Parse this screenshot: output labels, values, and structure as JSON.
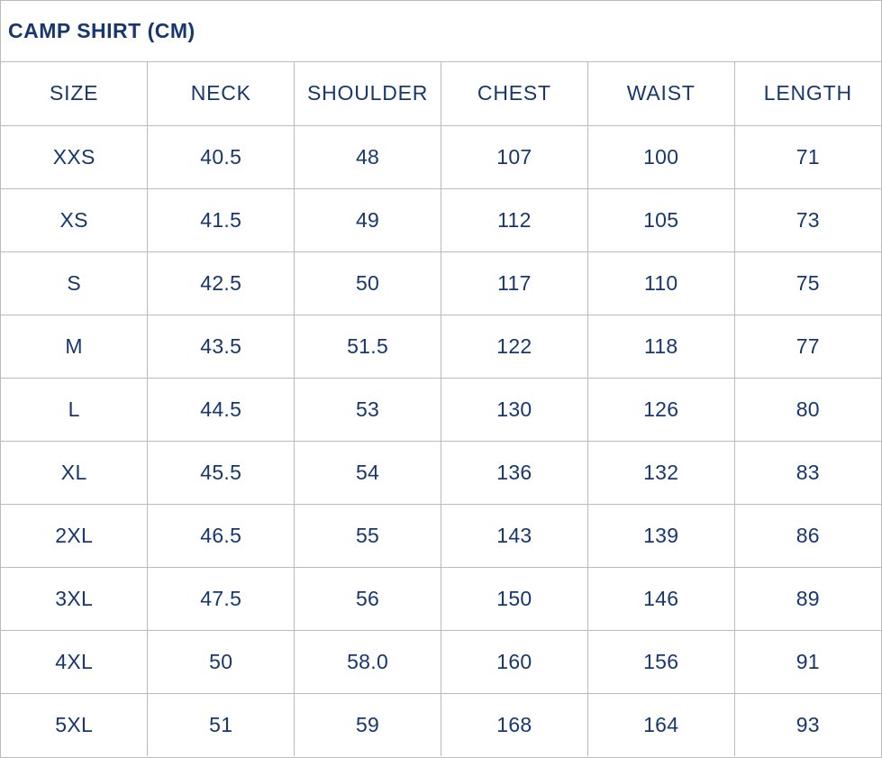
{
  "chart_data": {
    "type": "table",
    "title": "CAMP SHIRT (CM)",
    "columns": [
      "SIZE",
      "NECK",
      "SHOULDER",
      "CHEST",
      "WAIST",
      "LENGTH"
    ],
    "rows": [
      [
        "XXS",
        "40.5",
        "48",
        "107",
        "100",
        "71"
      ],
      [
        "XS",
        "41.5",
        "49",
        "112",
        "105",
        "73"
      ],
      [
        "S",
        "42.5",
        "50",
        "117",
        "110",
        "75"
      ],
      [
        "M",
        "43.5",
        "51.5",
        "122",
        "118",
        "77"
      ],
      [
        "L",
        "44.5",
        "53",
        "130",
        "126",
        "80"
      ],
      [
        "XL",
        "45.5",
        "54",
        "136",
        "132",
        "83"
      ],
      [
        "2XL",
        "46.5",
        "55",
        "143",
        "139",
        "86"
      ],
      [
        "3XL",
        "47.5",
        "56",
        "150",
        "146",
        "89"
      ],
      [
        "4XL",
        "50",
        "58.0",
        "160",
        "156",
        "91"
      ],
      [
        "5XL",
        "51",
        "59",
        "168",
        "164",
        "93"
      ]
    ],
    "layout": {
      "units": "cm",
      "grid": true,
      "title_position": "top-left",
      "cell_alignment": "center"
    }
  },
  "colors": {
    "text": "#17376E",
    "border": "#BBBBBB",
    "background": "#FFFFFF"
  }
}
